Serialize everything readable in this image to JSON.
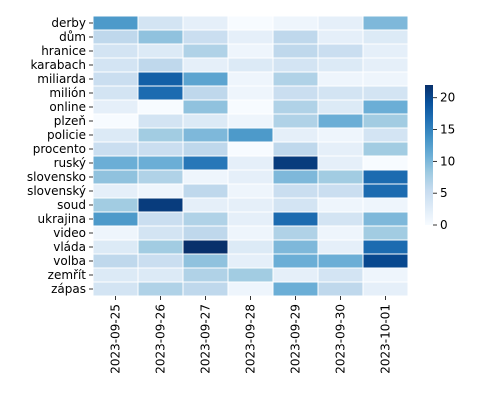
{
  "chart_data": {
    "type": "heatmap",
    "title": "",
    "xlabel": "",
    "ylabel": "",
    "columns": [
      "2023-09-25",
      "2023-09-26",
      "2023-09-27",
      "2023-09-28",
      "2023-09-29",
      "2023-09-30",
      "2023-10-01"
    ],
    "rows": [
      "derby",
      "dům",
      "hranice",
      "karabach",
      "miliarda",
      "milión",
      "online",
      "plzeň",
      "policie",
      "procento",
      "ruský",
      "slovensko",
      "slovenský",
      "soud",
      "ukrajina",
      "video",
      "vláda",
      "volba",
      "zemřít",
      "zápas"
    ],
    "values": [
      [
        13,
        4,
        2,
        0,
        1,
        2,
        10
      ],
      [
        6,
        9,
        5,
        2,
        6,
        2,
        3
      ],
      [
        4,
        3,
        7,
        1,
        6,
        5,
        2
      ],
      [
        4,
        6,
        2,
        3,
        4,
        3,
        2
      ],
      [
        5,
        18,
        12,
        1,
        7,
        1,
        1
      ],
      [
        4,
        17,
        6,
        1,
        5,
        4,
        4
      ],
      [
        2,
        0,
        9,
        0,
        7,
        3,
        11
      ],
      [
        0,
        4,
        3,
        1,
        7,
        11,
        8
      ],
      [
        3,
        8,
        10,
        13,
        2,
        1,
        4
      ],
      [
        5,
        5,
        6,
        0,
        6,
        2,
        8
      ],
      [
        11,
        11,
        16,
        2,
        21,
        2,
        0
      ],
      [
        9,
        7,
        1,
        2,
        10,
        8,
        17
      ],
      [
        2,
        1,
        6,
        1,
        5,
        5,
        17
      ],
      [
        8,
        21,
        2,
        2,
        4,
        1,
        1
      ],
      [
        13,
        5,
        7,
        2,
        17,
        4,
        10
      ],
      [
        1,
        4,
        6,
        1,
        7,
        1,
        8
      ],
      [
        3,
        8,
        22,
        3,
        10,
        2,
        17
      ],
      [
        6,
        5,
        9,
        2,
        11,
        11,
        20
      ],
      [
        3,
        3,
        7,
        8,
        2,
        4,
        1
      ],
      [
        4,
        7,
        6,
        1,
        11,
        6,
        2
      ]
    ],
    "vmin": 0,
    "vmax": 22,
    "colormap": "Blues",
    "colorbar_ticks": [
      0,
      5,
      10,
      15,
      20
    ],
    "cell_border_color": "#ffffff"
  }
}
